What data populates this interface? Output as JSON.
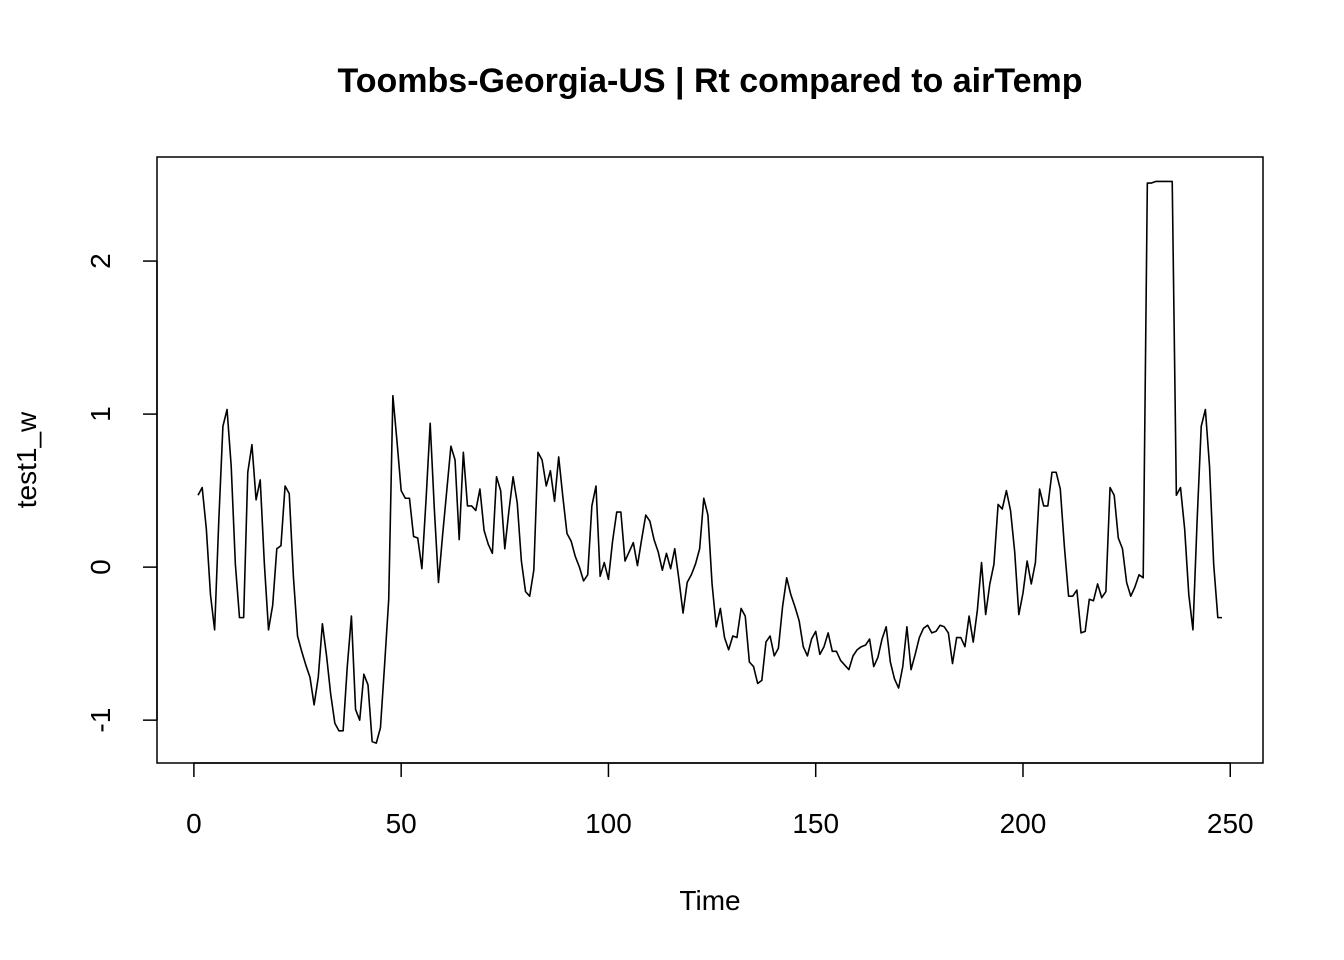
{
  "chart_data": {
    "type": "line",
    "title": "Toombs-Georgia-US | Rt compared to airTemp",
    "xlabel": "Time",
    "ylabel": "test1_w",
    "xlim": [
      -8.9,
      257.9
    ],
    "ylim": [
      -1.28,
      2.68
    ],
    "x_ticks": [
      0,
      50,
      100,
      150,
      200,
      250
    ],
    "y_ticks": [
      -1,
      0,
      1,
      2
    ],
    "grid": false,
    "legend": "none",
    "line_color": "#000000",
    "series": [
      {
        "x_start": 1,
        "values": [
          0.47,
          0.52,
          0.25,
          -0.18,
          -0.41,
          0.3,
          0.92,
          1.03,
          0.66,
          0.02,
          -0.33,
          -0.33,
          0.62,
          0.8,
          0.44,
          0.57,
          0.02,
          -0.41,
          -0.25,
          0.12,
          0.14,
          0.53,
          0.48,
          -0.06,
          -0.45,
          -0.55,
          -0.64,
          -0.72,
          -0.9,
          -0.72,
          -0.37,
          -0.58,
          -0.83,
          -1.02,
          -1.07,
          -1.07,
          -0.65,
          -0.32,
          -0.93,
          -1.0,
          -0.7,
          -0.77,
          -1.14,
          -1.15,
          -1.05,
          -0.64,
          -0.21,
          1.12,
          0.82,
          0.5,
          0.45,
          0.45,
          0.2,
          0.19,
          -0.01,
          0.44,
          0.94,
          0.38,
          -0.1,
          0.21,
          0.5,
          0.79,
          0.7,
          0.18,
          0.75,
          0.4,
          0.4,
          0.37,
          0.51,
          0.24,
          0.15,
          0.09,
          0.59,
          0.5,
          0.12,
          0.37,
          0.59,
          0.42,
          0.04,
          -0.16,
          -0.19,
          -0.02,
          0.75,
          0.7,
          0.53,
          0.63,
          0.43,
          0.72,
          0.46,
          0.22,
          0.17,
          0.07,
          0.0,
          -0.09,
          -0.05,
          0.4,
          0.53,
          -0.06,
          0.03,
          -0.08,
          0.17,
          0.36,
          0.36,
          0.04,
          0.1,
          0.16,
          0.01,
          0.18,
          0.34,
          0.3,
          0.18,
          0.1,
          -0.02,
          0.09,
          -0.01,
          0.12,
          -0.08,
          -0.3,
          -0.1,
          -0.05,
          0.02,
          0.12,
          0.45,
          0.34,
          -0.11,
          -0.39,
          -0.27,
          -0.46,
          -0.54,
          -0.45,
          -0.46,
          -0.27,
          -0.32,
          -0.62,
          -0.65,
          -0.76,
          -0.74,
          -0.49,
          -0.45,
          -0.58,
          -0.53,
          -0.26,
          -0.07,
          -0.18,
          -0.26,
          -0.35,
          -0.52,
          -0.58,
          -0.47,
          -0.42,
          -0.57,
          -0.52,
          -0.43,
          -0.55,
          -0.55,
          -0.61,
          -0.64,
          -0.67,
          -0.58,
          -0.54,
          -0.52,
          -0.51,
          -0.47,
          -0.65,
          -0.59,
          -0.47,
          -0.39,
          -0.62,
          -0.73,
          -0.79,
          -0.65,
          -0.39,
          -0.67,
          -0.57,
          -0.46,
          -0.4,
          -0.38,
          -0.43,
          -0.42,
          -0.38,
          -0.39,
          -0.43,
          -0.63,
          -0.46,
          -0.46,
          -0.52,
          -0.32,
          -0.49,
          -0.28,
          0.03,
          -0.31,
          -0.11,
          0.02,
          0.41,
          0.38,
          0.5,
          0.37,
          0.1,
          -0.31,
          -0.17,
          0.04,
          -0.11,
          0.03,
          0.51,
          0.4,
          0.4,
          0.62,
          0.62,
          0.51,
          0.13,
          -0.19,
          -0.19,
          -0.15,
          -0.43,
          -0.42,
          -0.21,
          -0.22,
          -0.11,
          -0.2,
          -0.16,
          0.52,
          0.47,
          0.19,
          0.12,
          -0.1,
          -0.19,
          -0.13,
          -0.05,
          -0.07,
          2.51,
          2.51,
          2.52,
          2.52,
          2.52,
          2.52,
          2.52,
          0.47,
          0.52,
          0.25,
          -0.18,
          -0.41,
          0.3,
          0.92,
          1.03,
          0.66,
          0.02,
          -0.33,
          -0.33
        ]
      }
    ]
  }
}
